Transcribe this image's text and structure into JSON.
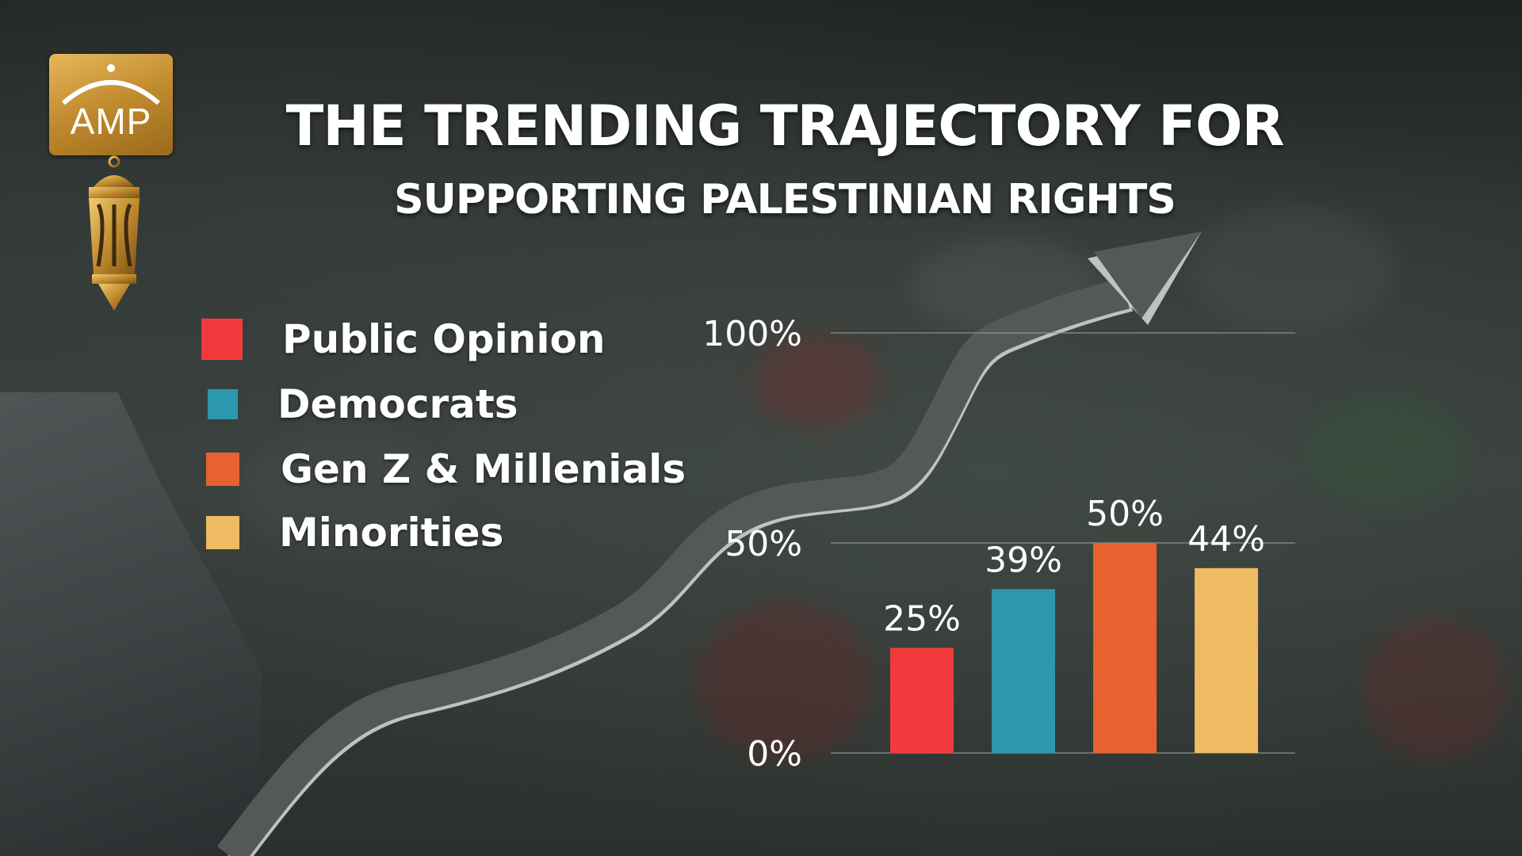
{
  "logo": {
    "text": "AMP"
  },
  "title_line1": "THE TRENDING TRAJECTORY FOR",
  "title_line2": "SUPPORTING PALESTINIAN RIGHTS",
  "colors": {
    "public_opinion": "#f23a3d",
    "democrats": "#2b98ad",
    "genz_millenials": "#e6622f",
    "minorities": "#eebb62",
    "arrow": "#555859",
    "gold": "#c8922e"
  },
  "chart_data": {
    "type": "bar",
    "categories": [
      "Public Opinion",
      "Democrats",
      "Gen Z & Millenials",
      "Minorities"
    ],
    "values": [
      25,
      39,
      50,
      44
    ],
    "value_labels": [
      "25%",
      "39%",
      "50%",
      "44%"
    ],
    "ylim": [
      0,
      100
    ],
    "yticks": [
      0,
      50,
      100
    ],
    "ytick_labels": [
      "0%",
      "50%",
      "100%"
    ],
    "grid": true,
    "legend": {
      "placement": "left",
      "entries": [
        {
          "label": "Public Opinion",
          "color": "#f23a3d"
        },
        {
          "label": "Democrats",
          "color": "#2b98ad"
        },
        {
          "label": "Gen Z & Millenials",
          "color": "#e6622f"
        },
        {
          "label": "Minorities",
          "color": "#eebb62"
        }
      ]
    },
    "title": "THE TRENDING TRAJECTORY FOR SUPPORTING PALESTINIAN RIGHTS"
  }
}
